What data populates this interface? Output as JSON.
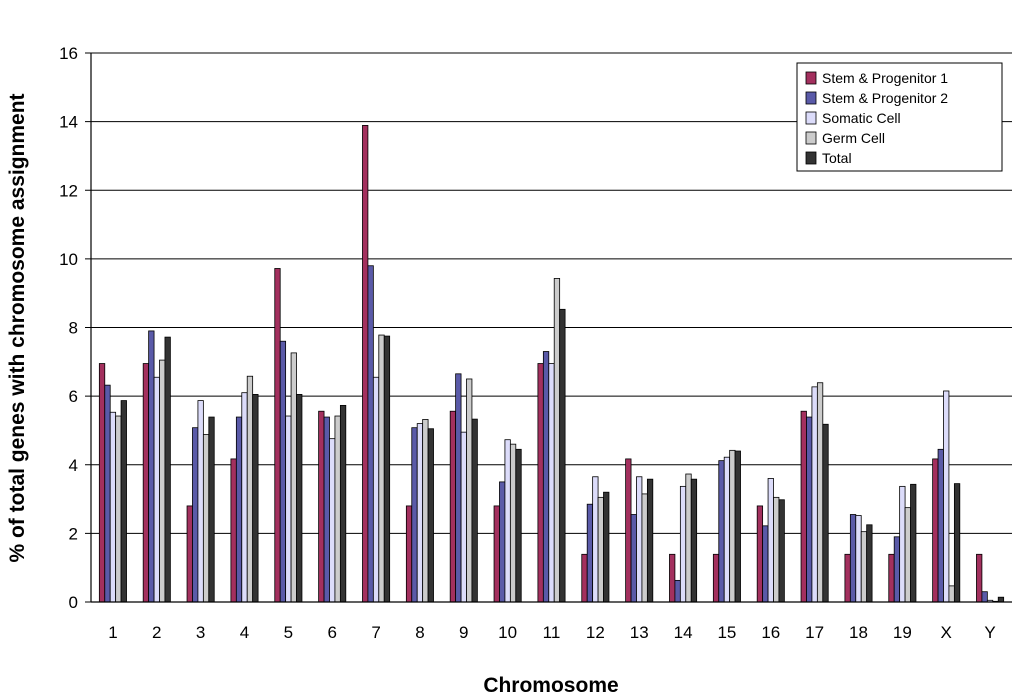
{
  "chart_data": {
    "type": "bar",
    "xlabel": "Chromosome",
    "ylabel": "% of total genes with chromosome assignment",
    "ylim": [
      0,
      16
    ],
    "yticks": [
      0,
      2,
      4,
      6,
      8,
      10,
      12,
      14,
      16
    ],
    "grid": "horizontal",
    "legend_position": "top-right",
    "categories": [
      "1",
      "2",
      "3",
      "4",
      "5",
      "6",
      "7",
      "8",
      "9",
      "10",
      "11",
      "12",
      "13",
      "14",
      "15",
      "16",
      "17",
      "18",
      "19",
      "X",
      "Y"
    ],
    "series": [
      {
        "name": "Stem & Progenitor 1",
        "color": "#a3305e",
        "values": [
          6.95,
          6.95,
          2.8,
          4.17,
          9.72,
          5.56,
          13.89,
          2.8,
          5.56,
          2.8,
          6.95,
          1.39,
          4.17,
          1.39,
          1.39,
          2.8,
          5.56,
          1.39,
          1.39,
          4.17,
          1.39
        ]
      },
      {
        "name": "Stem & Progenitor 2",
        "color": "#5a5aa8",
        "values": [
          6.32,
          7.9,
          5.08,
          5.39,
          7.6,
          5.39,
          9.8,
          5.08,
          6.65,
          3.5,
          7.3,
          2.85,
          2.55,
          0.63,
          4.12,
          2.22,
          5.39,
          2.55,
          1.9,
          4.45,
          0.3
        ]
      },
      {
        "name": "Somatic Cell",
        "color": "#dcdcfa",
        "values": [
          5.53,
          6.55,
          5.87,
          6.1,
          5.42,
          4.76,
          6.55,
          5.2,
          4.95,
          4.73,
          6.95,
          3.65,
          3.65,
          3.37,
          4.22,
          3.6,
          6.27,
          2.52,
          3.37,
          6.15,
          0.05
        ]
      },
      {
        "name": "Germ Cell",
        "color": "#cccccc",
        "values": [
          5.42,
          7.05,
          4.88,
          6.58,
          7.26,
          5.42,
          7.78,
          5.32,
          6.5,
          4.6,
          9.43,
          3.05,
          3.15,
          3.73,
          4.42,
          3.05,
          6.39,
          2.05,
          2.75,
          0.47,
          0.02
        ]
      },
      {
        "name": "Total",
        "color": "#333333",
        "values": [
          5.87,
          7.72,
          5.39,
          6.05,
          6.05,
          5.73,
          7.75,
          5.05,
          5.33,
          4.45,
          8.53,
          3.2,
          3.58,
          3.58,
          4.4,
          2.98,
          5.18,
          2.25,
          3.43,
          3.45,
          0.14
        ]
      }
    ]
  }
}
